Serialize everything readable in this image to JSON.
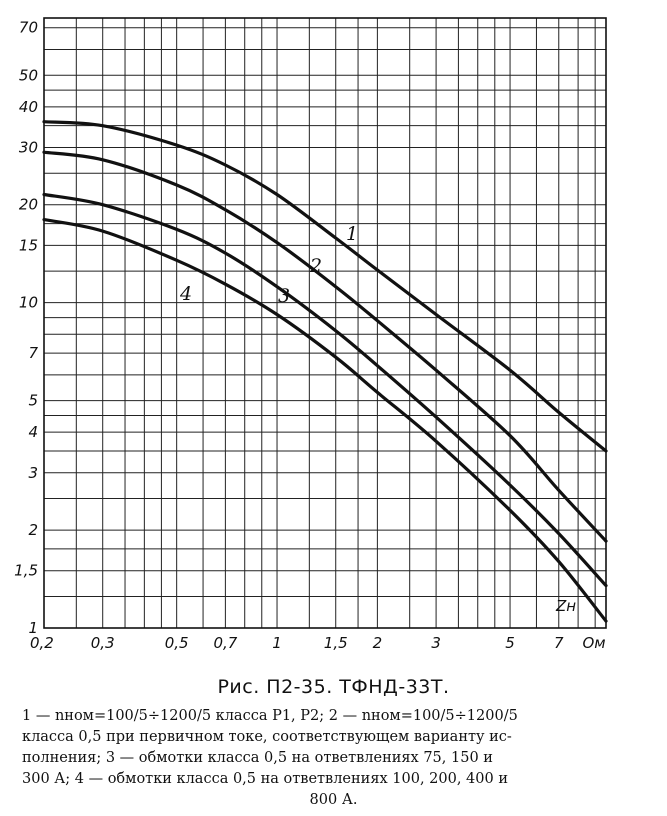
{
  "chart_data": {
    "type": "line",
    "x_scale": "log",
    "y_scale": "log",
    "xlim": [
      0.2,
      9.7
    ],
    "ylim": [
      1,
      75
    ],
    "grid": true,
    "x_tick_labels": [
      "0,2",
      "0,3",
      "0,5",
      "0,7",
      "1",
      "1,5",
      "2",
      "3",
      "5",
      "7",
      "Ом"
    ],
    "x_tick_values": [
      0.2,
      0.3,
      0.5,
      0.7,
      1,
      1.5,
      2,
      3,
      5,
      7
    ],
    "y_tick_labels": [
      "1",
      "1,5",
      "2",
      "3",
      "4",
      "5",
      "7",
      "10",
      "15",
      "20",
      "30",
      "40",
      "50",
      "70"
    ],
    "y_tick_values": [
      1,
      1.5,
      2,
      3,
      4,
      5,
      7,
      10,
      15,
      20,
      30,
      40,
      50,
      70
    ],
    "x_axis_unit_label": "Zн",
    "series": [
      {
        "name": "1",
        "x": [
          0.2,
          0.3,
          0.5,
          0.7,
          1,
          1.5,
          2,
          3,
          5,
          7,
          9.7
        ],
        "y": [
          36,
          35,
          30.5,
          26.5,
          21.5,
          15.8,
          12.6,
          9.2,
          6.2,
          4.6,
          3.5
        ]
      },
      {
        "name": "2",
        "x": [
          0.2,
          0.3,
          0.5,
          0.7,
          1,
          1.5,
          2,
          3,
          5,
          7,
          9.7
        ],
        "y": [
          29,
          27.5,
          23,
          19.3,
          15.3,
          11.2,
          8.8,
          6.2,
          3.9,
          2.65,
          1.85
        ]
      },
      {
        "name": "3",
        "x": [
          0.2,
          0.3,
          0.5,
          0.7,
          1,
          1.5,
          2,
          3,
          5,
          7,
          9.7
        ],
        "y": [
          21.5,
          20,
          16.8,
          14.2,
          11.2,
          8.2,
          6.4,
          4.45,
          2.75,
          1.95,
          1.35
        ]
      },
      {
        "name": "4",
        "x": [
          0.2,
          0.3,
          0.5,
          0.7,
          1,
          1.5,
          2,
          3,
          5,
          7,
          9.7
        ],
        "y": [
          18,
          16.6,
          13.5,
          11.4,
          9.2,
          6.8,
          5.3,
          3.75,
          2.3,
          1.6,
          1.05
        ]
      }
    ]
  },
  "caption": {
    "title": "Рис. П2-35. ТФНД-33Т.",
    "lines": [
      "1 — nном=100/5÷1200/5 класса Р1, Р2; 2 — nном=100/5÷1200/5",
      "класса 0,5 при первичном токе, соответствующем варианту ис-",
      "полнения; 3 — обмотки класса 0,5 на ответвлениях 75, 150 и",
      "300 А; 4 — обмотки класса 0,5 на ответвлениях 100, 200, 400 и",
      "800 А."
    ]
  }
}
